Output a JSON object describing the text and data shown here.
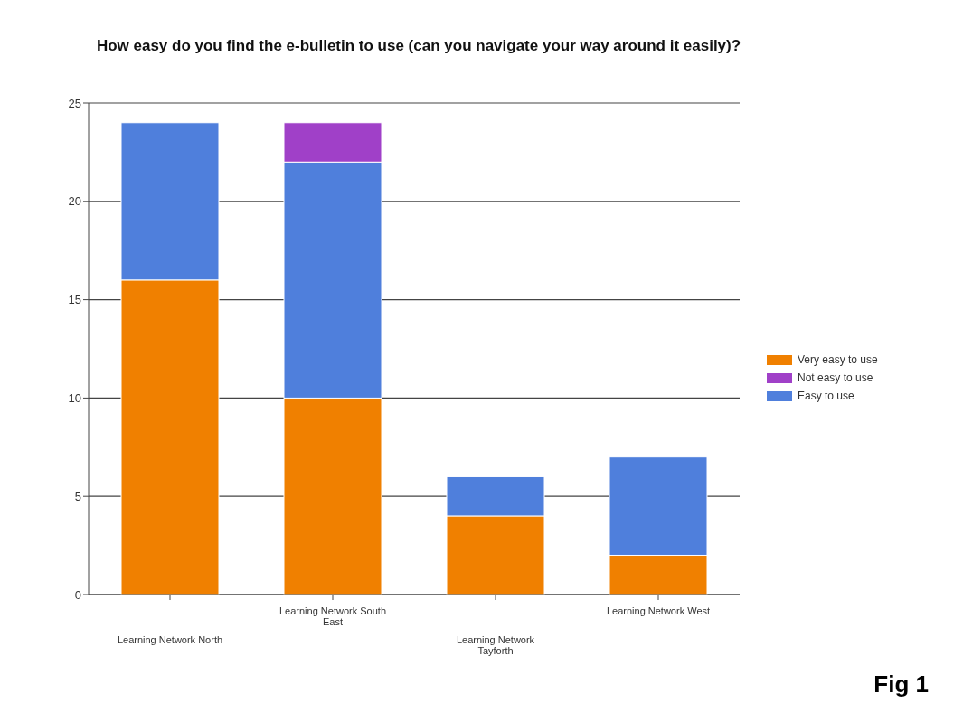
{
  "chart_data": {
    "type": "bar",
    "title": "How easy do you find the e-bulletin to use (can you navigate your way around it easily)?",
    "categories": [
      "Learning Network North",
      "Learning Network South East",
      "Learning Network Tayforth",
      "Learning Network West"
    ],
    "series": [
      {
        "name": "Very easy to use",
        "color": "#f08000",
        "values": [
          16,
          10,
          4,
          2
        ]
      },
      {
        "name": "Easy to use",
        "color": "#4f7fdc",
        "values": [
          8,
          12,
          2,
          5
        ]
      },
      {
        "name": "Not easy to use",
        "color": "#a040c8",
        "values": [
          null,
          2,
          null,
          null
        ]
      }
    ],
    "stacked": true,
    "ylim": [
      0,
      25
    ],
    "yticks": [
      0,
      5,
      10,
      15,
      20,
      25
    ],
    "grid": "y",
    "legend": "right",
    "annotations": [
      "Fig 1"
    ]
  }
}
